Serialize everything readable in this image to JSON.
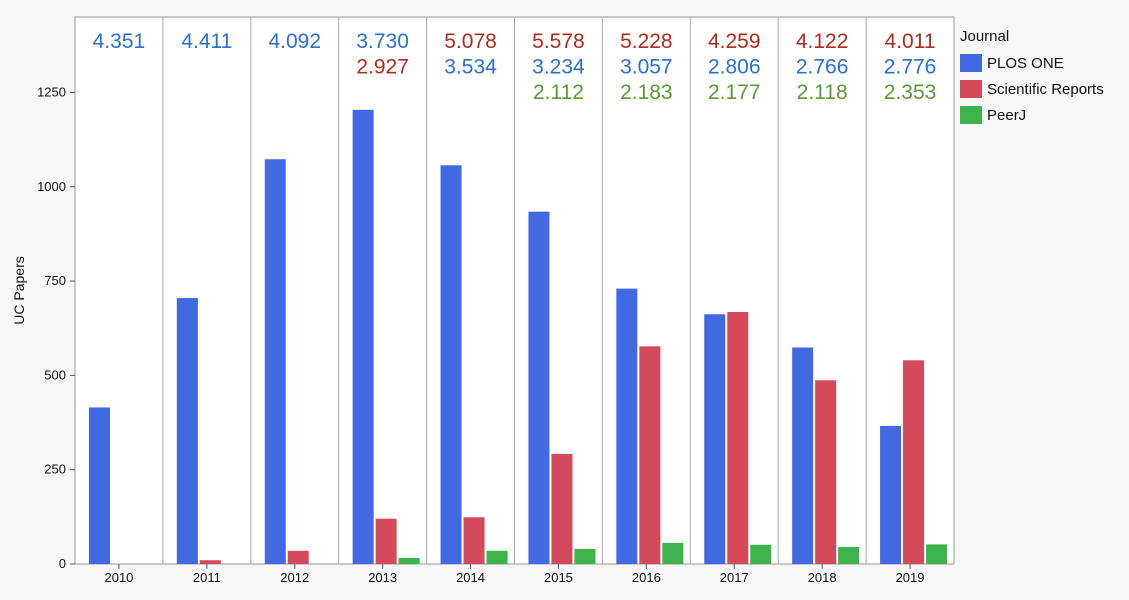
{
  "chart_data": {
    "type": "bar",
    "ylabel": "UC Papers",
    "xlabel": "",
    "ylim": [
      0,
      1450
    ],
    "y_ticks": [
      0,
      250,
      500,
      750,
      1000,
      1250
    ],
    "grid": false,
    "categories": [
      "2010",
      "2011",
      "2012",
      "2013",
      "2014",
      "2015",
      "2016",
      "2017",
      "2018",
      "2019"
    ],
    "series": [
      {
        "name": "PLOS ONE",
        "color": "#4169e1",
        "values": [
          415,
          705,
          1073,
          1204,
          1057,
          934,
          730,
          662,
          574,
          366
        ]
      },
      {
        "name": "Scientific Reports",
        "color": "#d44a5a",
        "values": [
          0,
          10,
          35,
          120,
          124,
          292,
          577,
          668,
          487,
          540
        ]
      },
      {
        "name": "PeerJ",
        "color": "#3cb44b",
        "values": [
          0,
          0,
          0,
          16,
          35,
          40,
          56,
          51,
          45,
          52
        ]
      }
    ],
    "legend": {
      "title": "Journal",
      "placement": "right"
    },
    "annotations": [
      [
        {
          "text": "4.351",
          "journal": "PLOS ONE"
        }
      ],
      [
        {
          "text": "4.411",
          "journal": "PLOS ONE"
        }
      ],
      [
        {
          "text": "4.092",
          "journal": "PLOS ONE"
        }
      ],
      [
        {
          "text": "3.730",
          "journal": "PLOS ONE"
        },
        {
          "text": "2.927",
          "journal": "Scientific Reports"
        }
      ],
      [
        {
          "text": "5.078",
          "journal": "Scientific Reports"
        },
        {
          "text": "3.534",
          "journal": "PLOS ONE"
        }
      ],
      [
        {
          "text": "5.578",
          "journal": "Scientific Reports"
        },
        {
          "text": "3.234",
          "journal": "PLOS ONE"
        },
        {
          "text": "2.112",
          "journal": "PeerJ"
        }
      ],
      [
        {
          "text": "5.228",
          "journal": "Scientific Reports"
        },
        {
          "text": "3.057",
          "journal": "PLOS ONE"
        },
        {
          "text": "2.183",
          "journal": "PeerJ"
        }
      ],
      [
        {
          "text": "4.259",
          "journal": "Scientific Reports"
        },
        {
          "text": "2.806",
          "journal": "PLOS ONE"
        },
        {
          "text": "2.177",
          "journal": "PeerJ"
        }
      ],
      [
        {
          "text": "4.122",
          "journal": "Scientific Reports"
        },
        {
          "text": "2.766",
          "journal": "PLOS ONE"
        },
        {
          "text": "2.118",
          "journal": "PeerJ"
        }
      ],
      [
        {
          "text": "4.011",
          "journal": "Scientific Reports"
        },
        {
          "text": "2.776",
          "journal": "PLOS ONE"
        },
        {
          "text": "2.353",
          "journal": "PeerJ"
        }
      ]
    ],
    "annotation_colors": {
      "PLOS ONE": "#2b6ed4",
      "Scientific Reports": "#b22a1e",
      "PeerJ": "#5a9a33"
    }
  }
}
